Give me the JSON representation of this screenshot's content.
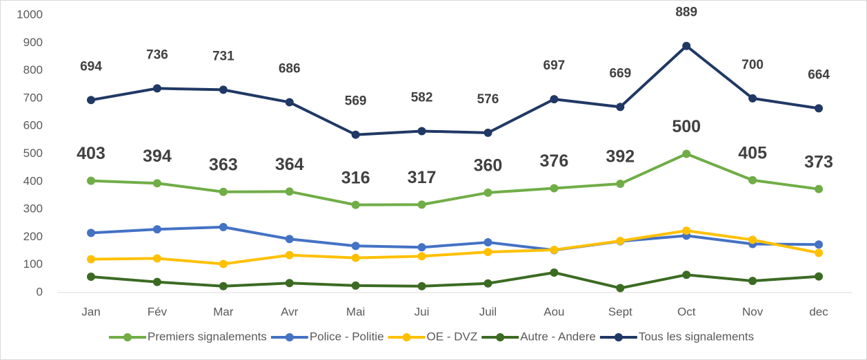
{
  "chart_data": {
    "type": "line",
    "categories": [
      "Jan",
      "Fév",
      "Mar",
      "Avr",
      "Mai",
      "Jui",
      "Juil",
      "Aou",
      "Sept",
      "Oct",
      "Nov",
      "dec"
    ],
    "ylim": [
      0,
      1000
    ],
    "yticks": [
      0,
      100,
      200,
      300,
      400,
      500,
      600,
      700,
      800,
      900,
      1000
    ],
    "grid": false,
    "legend": "bottom",
    "series": [
      {
        "name": "Premiers signalements",
        "color": "#70ad47",
        "data_labels": true,
        "values": [
          403,
          394,
          363,
          364,
          316,
          317,
          360,
          376,
          392,
          500,
          405,
          373
        ]
      },
      {
        "name": "Police - Politie",
        "color": "#4472c4",
        "values": [
          215,
          228,
          236,
          193,
          168,
          163,
          181,
          153,
          185,
          205,
          175,
          173
        ]
      },
      {
        "name": "OE - DVZ",
        "color": "#ffc000",
        "values": [
          120,
          123,
          103,
          135,
          125,
          131,
          146,
          154,
          186,
          223,
          190,
          143
        ]
      },
      {
        "name": "Autre - Andere",
        "color": "#3b6b23",
        "values": [
          57,
          38,
          23,
          34,
          25,
          23,
          33,
          72,
          16,
          64,
          42,
          58
        ]
      },
      {
        "name": "Tous les signalements",
        "color": "#203864",
        "data_labels": true,
        "values": [
          694,
          736,
          731,
          686,
          569,
          582,
          576,
          697,
          669,
          889,
          700,
          664
        ]
      }
    ]
  }
}
